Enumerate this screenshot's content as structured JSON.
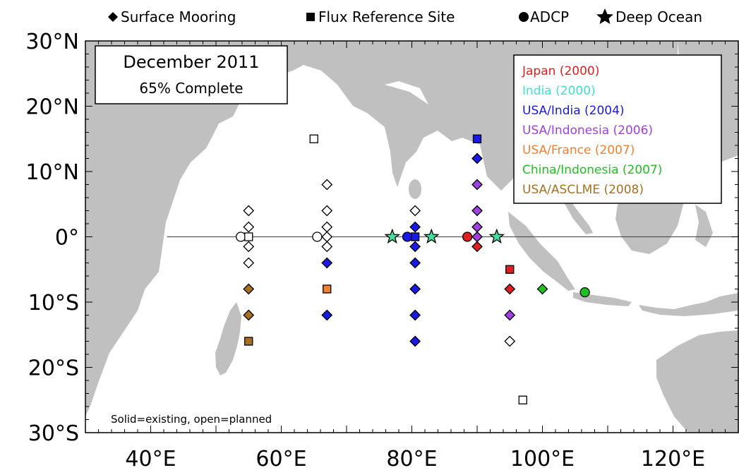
{
  "header_legend": [
    {
      "symbol": "diamond",
      "label": "Surface Mooring"
    },
    {
      "symbol": "square",
      "label": "Flux Reference Site"
    },
    {
      "symbol": "circle",
      "label": "ADCP"
    },
    {
      "symbol": "star",
      "label": "Deep Ocean"
    }
  ],
  "title_box": {
    "date": "December 2011",
    "status": "65% Complete"
  },
  "map": {
    "lon_range": [
      30,
      130
    ],
    "lat_range": [
      -30,
      30
    ],
    "x_ticks": [
      {
        "value": 40,
        "label": "40°E"
      },
      {
        "value": 60,
        "label": "60°E"
      },
      {
        "value": 80,
        "label": "80°E"
      },
      {
        "value": 100,
        "label": "100°E"
      },
      {
        "value": 120,
        "label": "120°E"
      }
    ],
    "y_ticks": [
      {
        "value": 30,
        "label": "30°N"
      },
      {
        "value": 20,
        "label": "20°N"
      },
      {
        "value": 10,
        "label": "10°N"
      },
      {
        "value": 0,
        "label": "0°"
      },
      {
        "value": -10,
        "label": "10°S"
      },
      {
        "value": -20,
        "label": "20°S"
      },
      {
        "value": -30,
        "label": "30°S"
      }
    ],
    "land_color": "#c0c0c0",
    "equator_line": true
  },
  "country_legend": [
    {
      "label": "Japan (2000)",
      "color": "#e02020"
    },
    {
      "label": "India (2000)",
      "color": "#40e0d0"
    },
    {
      "label": "USA/India (2004)",
      "color": "#1a1ae6"
    },
    {
      "label": "USA/Indonesia (2006)",
      "color": "#a040e0"
    },
    {
      "label": "USA/France (2007)",
      "color": "#f08030"
    },
    {
      "label": "China/Indonesia (2007)",
      "color": "#20c020"
    },
    {
      "label": "USA/ASCLME (2008)",
      "color": "#a87020"
    }
  ],
  "note": "Solid=existing, open=planned",
  "sites": [
    {
      "type": "circle",
      "lon": 53.8,
      "lat": 0,
      "fill": "open"
    },
    {
      "type": "square",
      "lon": 55,
      "lat": 0,
      "fill": "open"
    },
    {
      "type": "diamond",
      "lon": 55,
      "lat": 4,
      "fill": "open"
    },
    {
      "type": "diamond",
      "lon": 55,
      "lat": 1.5,
      "fill": "open"
    },
    {
      "type": "diamond",
      "lon": 55,
      "lat": -1.5,
      "fill": "open"
    },
    {
      "type": "diamond",
      "lon": 55,
      "lat": -4,
      "fill": "open"
    },
    {
      "type": "diamond",
      "lon": 55,
      "lat": -8,
      "fill": "#a87020"
    },
    {
      "type": "diamond",
      "lon": 55,
      "lat": -12,
      "fill": "#a87020"
    },
    {
      "type": "square",
      "lon": 55,
      "lat": -16,
      "fill": "#a87020"
    },
    {
      "type": "square",
      "lon": 65,
      "lat": 15,
      "fill": "open"
    },
    {
      "type": "circle",
      "lon": 65.5,
      "lat": 0,
      "fill": "open"
    },
    {
      "type": "diamond",
      "lon": 67,
      "lat": 8,
      "fill": "open"
    },
    {
      "type": "diamond",
      "lon": 67,
      "lat": 4,
      "fill": "open"
    },
    {
      "type": "diamond",
      "lon": 67,
      "lat": 1.5,
      "fill": "open"
    },
    {
      "type": "diamond",
      "lon": 67,
      "lat": 0,
      "fill": "open"
    },
    {
      "type": "diamond",
      "lon": 67,
      "lat": -1.5,
      "fill": "open"
    },
    {
      "type": "diamond",
      "lon": 67,
      "lat": -4,
      "fill": "#1a1ae6"
    },
    {
      "type": "square",
      "lon": 67,
      "lat": -8,
      "fill": "#f08030"
    },
    {
      "type": "diamond",
      "lon": 67,
      "lat": -12,
      "fill": "#1a1ae6"
    },
    {
      "type": "star",
      "lon": 77,
      "lat": 0,
      "fill": "#40e0a0"
    },
    {
      "type": "circle",
      "lon": 79.3,
      "lat": 0,
      "fill": "#1a1ae6"
    },
    {
      "type": "square",
      "lon": 80.5,
      "lat": 0,
      "fill": "#1a1ae6"
    },
    {
      "type": "diamond",
      "lon": 80.5,
      "lat": 4,
      "fill": "open"
    },
    {
      "type": "diamond",
      "lon": 80.5,
      "lat": 1.5,
      "fill": "#1a1ae6"
    },
    {
      "type": "diamond",
      "lon": 80.5,
      "lat": -1.5,
      "fill": "#1a1ae6"
    },
    {
      "type": "diamond",
      "lon": 80.5,
      "lat": -4,
      "fill": "#1a1ae6"
    },
    {
      "type": "diamond",
      "lon": 80.5,
      "lat": -8,
      "fill": "#1a1ae6"
    },
    {
      "type": "diamond",
      "lon": 80.5,
      "lat": -12,
      "fill": "#1a1ae6"
    },
    {
      "type": "diamond",
      "lon": 80.5,
      "lat": -16,
      "fill": "#1a1ae6"
    },
    {
      "type": "star",
      "lon": 83,
      "lat": 0,
      "fill": "#40e0a0"
    },
    {
      "type": "circle",
      "lon": 88.5,
      "lat": 0,
      "fill": "#e02020"
    },
    {
      "type": "square",
      "lon": 90,
      "lat": 15,
      "fill": "#1a1ae6"
    },
    {
      "type": "diamond",
      "lon": 90,
      "lat": 12,
      "fill": "#1a1ae6"
    },
    {
      "type": "diamond",
      "lon": 90,
      "lat": 8,
      "fill": "#a040e0"
    },
    {
      "type": "diamond",
      "lon": 90,
      "lat": 4,
      "fill": "#a040e0"
    },
    {
      "type": "diamond",
      "lon": 90,
      "lat": 1.5,
      "fill": "#a040e0"
    },
    {
      "type": "diamond",
      "lon": 90,
      "lat": 0,
      "fill": "#a040e0"
    },
    {
      "type": "diamond",
      "lon": 90,
      "lat": -1.5,
      "fill": "#e02020"
    },
    {
      "type": "star",
      "lon": 93,
      "lat": 0,
      "fill": "#40e0a0"
    },
    {
      "type": "square",
      "lon": 95,
      "lat": -5,
      "fill": "#e02020"
    },
    {
      "type": "diamond",
      "lon": 95,
      "lat": -8,
      "fill": "#e02020"
    },
    {
      "type": "diamond",
      "lon": 95,
      "lat": -12,
      "fill": "#a040e0"
    },
    {
      "type": "diamond",
      "lon": 95,
      "lat": -16,
      "fill": "open"
    },
    {
      "type": "square",
      "lon": 97,
      "lat": -25,
      "fill": "open"
    },
    {
      "type": "diamond",
      "lon": 100,
      "lat": -8,
      "fill": "#20c020"
    },
    {
      "type": "circle",
      "lon": 106.5,
      "lat": -8.5,
      "fill": "#20c020"
    }
  ]
}
